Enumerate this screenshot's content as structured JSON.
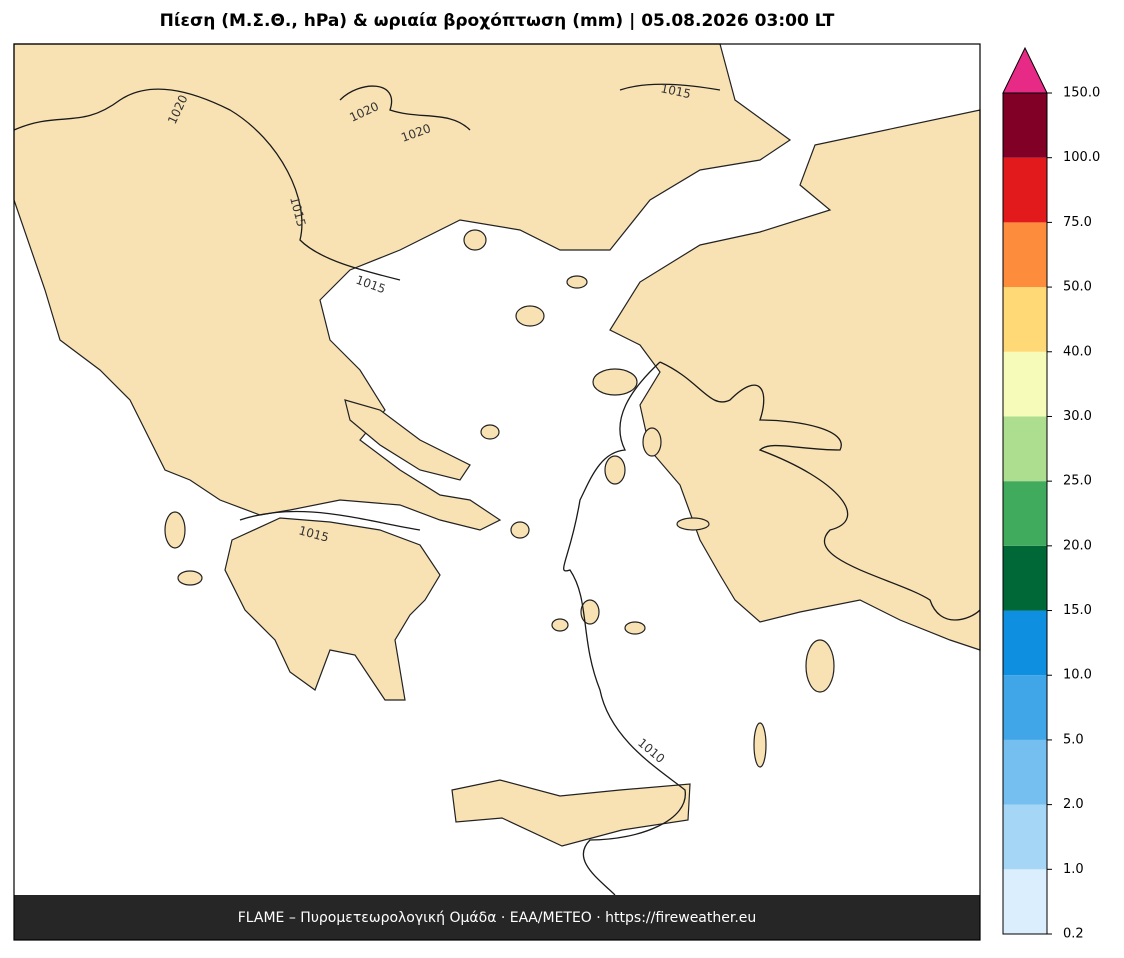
{
  "header": {
    "title": "Πίεση (Μ.Σ.Θ., hPa) & ωριαία βροχόπτωση (mm)  |  05.08.2026 03:00 LT"
  },
  "map": {
    "contour_labels": [
      "1020",
      "1020",
      "1020",
      "1015",
      "1015",
      "1015",
      "1015",
      "1010"
    ]
  },
  "colorbar": {
    "levels": [
      {
        "value": 0.2,
        "label": "0.2"
      },
      {
        "value": 1,
        "label": "1.0"
      },
      {
        "value": 2,
        "label": "2.0"
      },
      {
        "value": 5,
        "label": "5.0"
      },
      {
        "value": 10,
        "label": "10.0"
      },
      {
        "value": 15,
        "label": "15.0"
      },
      {
        "value": 20,
        "label": "20.0"
      },
      {
        "value": 25,
        "label": "25.0"
      },
      {
        "value": 30,
        "label": "30.0"
      },
      {
        "value": 40,
        "label": "40.0"
      },
      {
        "value": 50,
        "label": "50.0"
      },
      {
        "value": 75,
        "label": "75.0"
      },
      {
        "value": 100,
        "label": "100.0"
      },
      {
        "value": 150,
        "label": "150.0"
      }
    ],
    "colors": [
      "#dbeefd",
      "#a6d6f5",
      "#74bff0",
      "#41a6e8",
      "#0f8fe0",
      "#006837",
      "#41ab5d",
      "#addd8e",
      "#f7fbb9",
      "#fed976",
      "#fd8d3c",
      "#e31a1c",
      "#800026"
    ],
    "extend_color": "#e62a85"
  },
  "footer": {
    "text": "FLAME – Πυρομετεωρολογική Ομάδα · ΕΑΑ/ΜΕΤΕΟ · https://fireweather.eu"
  }
}
